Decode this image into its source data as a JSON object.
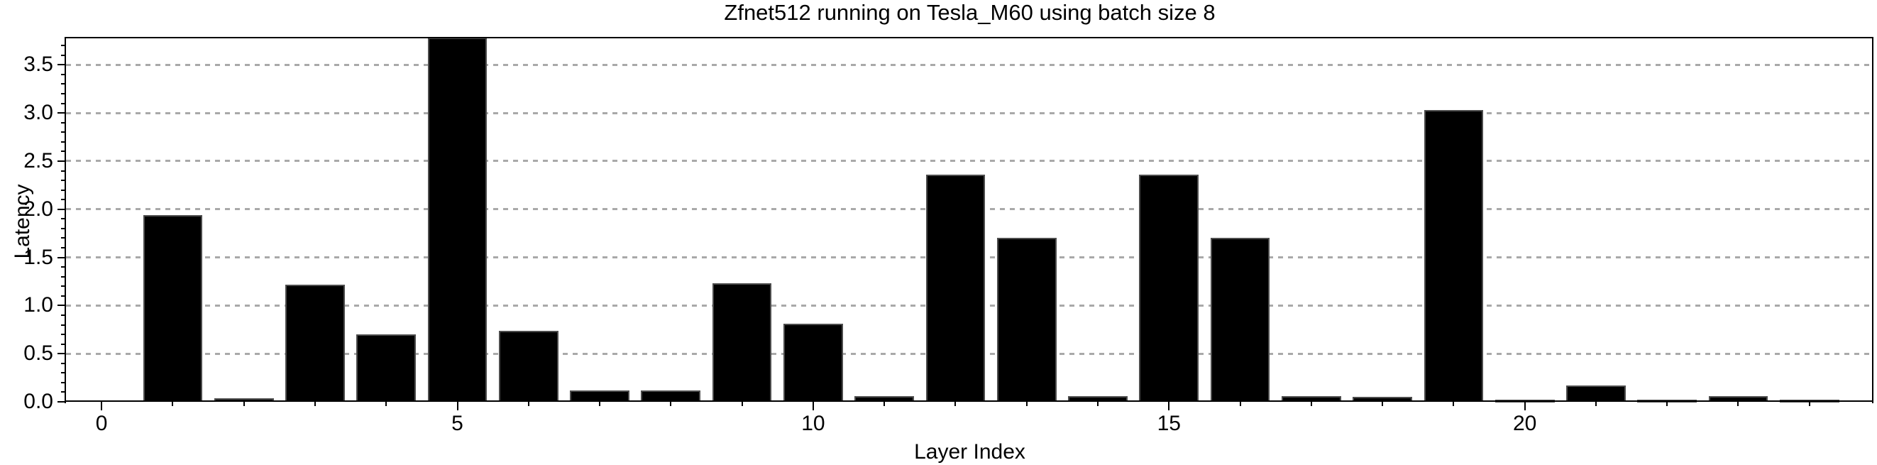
{
  "figure": {
    "background_color": "#ffffff"
  },
  "chart_data": {
    "type": "bar",
    "title": "Zfnet512 running on Tesla_M60 using batch size 8",
    "xlabel": "Layer Index",
    "ylabel": "Latency",
    "x": [
      1,
      2,
      3,
      4,
      5,
      6,
      7,
      8,
      9,
      10,
      11,
      12,
      13,
      14,
      15,
      16,
      17,
      18,
      19,
      20,
      21,
      22,
      23,
      24
    ],
    "values": [
      1.94,
      0.04,
      1.22,
      0.7,
      3.78,
      0.74,
      0.12,
      0.12,
      1.23,
      0.81,
      0.06,
      2.36,
      1.7,
      0.06,
      2.36,
      1.7,
      0.06,
      0.05,
      3.03,
      0.02,
      0.17,
      0.02,
      0.06,
      0.02
    ],
    "bar_color": "#000000",
    "bar_edge_color": "#4d4d4d",
    "xlim": [
      -0.5,
      24.9
    ],
    "ylim": [
      0.0,
      3.79
    ],
    "x_major_ticks": [
      0,
      5,
      10,
      15,
      20
    ],
    "x_tick_labels": [
      "0",
      "5",
      "10",
      "15",
      "20"
    ],
    "x_minor_tick_step": 1,
    "y_major_ticks": [
      0.0,
      0.5,
      1.0,
      1.5,
      2.0,
      2.5,
      3.0,
      3.5
    ],
    "y_tick_labels": [
      "0.0",
      "0.5",
      "1.0",
      "1.5",
      "2.0",
      "2.5",
      "3.0",
      "3.5"
    ],
    "y_minor_tick_step": 0.1,
    "grid": {
      "axis": "y",
      "which": "major",
      "style": "dotted",
      "color": "#a9a9a9"
    },
    "legend": null
  }
}
